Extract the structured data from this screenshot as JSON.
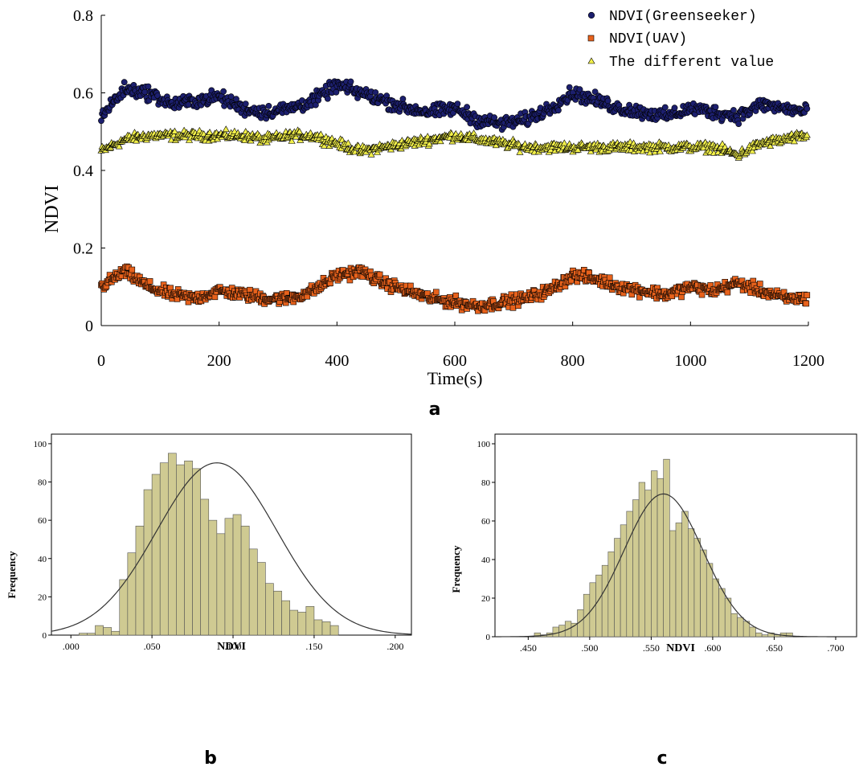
{
  "colors": {
    "greenseeker": "#1c1f6e",
    "uav": "#e8621c",
    "difference": "#f2f04a",
    "hist_bar": "#cfca92",
    "curve": "#333333",
    "axis": "#000000"
  },
  "chart_data": [
    {
      "id": "a",
      "type": "scatter",
      "panel_label": "a",
      "xlabel": "Time(s)",
      "ylabel": "NDVI",
      "xlim": [
        0,
        1200
      ],
      "ylim": [
        0,
        0.8
      ],
      "xticks": [
        0,
        200,
        400,
        600,
        800,
        1000,
        1200
      ],
      "yticks": [
        0,
        0.2,
        0.4,
        0.6,
        0.8
      ],
      "xtick_labels": [
        "0",
        "200",
        "400",
        "600",
        "800",
        "1000",
        "1200"
      ],
      "ytick_labels": [
        "0",
        "0.2",
        "0.4",
        "0.6",
        "0.8"
      ],
      "legend_position": "top-right",
      "series": [
        {
          "name": "NDVI(Greenseeker)",
          "marker": "circle",
          "x": [
            0,
            40,
            80,
            120,
            160,
            200,
            240,
            280,
            320,
            360,
            400,
            440,
            480,
            520,
            560,
            600,
            640,
            680,
            720,
            760,
            800,
            840,
            880,
            920,
            960,
            1000,
            1040,
            1080,
            1120,
            1160,
            1200
          ],
          "y": [
            0.54,
            0.61,
            0.6,
            0.57,
            0.58,
            0.59,
            0.56,
            0.55,
            0.56,
            0.58,
            0.62,
            0.6,
            0.58,
            0.56,
            0.55,
            0.56,
            0.53,
            0.52,
            0.53,
            0.56,
            0.6,
            0.58,
            0.56,
            0.55,
            0.54,
            0.56,
            0.55,
            0.54,
            0.57,
            0.56,
            0.55
          ]
        },
        {
          "name": "NDVI(UAV)",
          "marker": "square",
          "x": [
            0,
            40,
            80,
            120,
            160,
            200,
            240,
            280,
            320,
            360,
            400,
            440,
            480,
            520,
            560,
            600,
            640,
            680,
            720,
            760,
            800,
            840,
            880,
            920,
            960,
            1000,
            1040,
            1080,
            1120,
            1160,
            1200
          ],
          "y": [
            0.1,
            0.14,
            0.1,
            0.08,
            0.07,
            0.09,
            0.08,
            0.07,
            0.07,
            0.09,
            0.13,
            0.14,
            0.11,
            0.09,
            0.07,
            0.06,
            0.05,
            0.06,
            0.07,
            0.09,
            0.13,
            0.12,
            0.1,
            0.09,
            0.08,
            0.1,
            0.09,
            0.11,
            0.09,
            0.07,
            0.07
          ]
        },
        {
          "name": "The different value",
          "marker": "triangle",
          "x": [
            0,
            40,
            80,
            120,
            160,
            200,
            240,
            280,
            320,
            360,
            400,
            440,
            480,
            520,
            560,
            600,
            640,
            680,
            720,
            760,
            800,
            840,
            880,
            920,
            960,
            1000,
            1040,
            1080,
            1120,
            1160,
            1200
          ],
          "y": [
            0.45,
            0.48,
            0.49,
            0.49,
            0.49,
            0.49,
            0.49,
            0.48,
            0.49,
            0.49,
            0.47,
            0.45,
            0.46,
            0.47,
            0.48,
            0.49,
            0.48,
            0.47,
            0.46,
            0.46,
            0.46,
            0.46,
            0.46,
            0.46,
            0.46,
            0.46,
            0.46,
            0.44,
            0.47,
            0.48,
            0.49
          ]
        }
      ]
    },
    {
      "id": "b",
      "type": "bar",
      "panel_label": "b",
      "xlabel": "NDVI",
      "ylabel": "Frequency",
      "xlim": [
        -0.012,
        0.21
      ],
      "ylim": [
        0,
        105
      ],
      "xticks": [
        0,
        0.05,
        0.1,
        0.15,
        0.2
      ],
      "xtick_labels": [
        ".000",
        ".050",
        ".100",
        ".150",
        ".200"
      ],
      "yticks": [
        0,
        20,
        40,
        60,
        80,
        100
      ],
      "ytick_labels": [
        "0",
        "20",
        "40",
        "60",
        "80",
        "100"
      ],
      "bin_width": 0.005,
      "bin_start": 0.005,
      "values": [
        1,
        1,
        5,
        4,
        2,
        29,
        43,
        57,
        76,
        84,
        90,
        95,
        89,
        91,
        87,
        71,
        60,
        53,
        61,
        63,
        57,
        45,
        38,
        27,
        23,
        18,
        13,
        12,
        15,
        8,
        7,
        5
      ],
      "normal_curve": {
        "mean": 0.09,
        "sd": 0.037,
        "peak": 90
      }
    },
    {
      "id": "c",
      "type": "bar",
      "panel_label": "c",
      "xlabel": "NDVI",
      "ylabel": "Frequency",
      "xlim": [
        0.423,
        0.717
      ],
      "ylim": [
        0,
        105
      ],
      "xticks": [
        0.45,
        0.5,
        0.55,
        0.6,
        0.65,
        0.7
      ],
      "xtick_labels": [
        ".450",
        ".500",
        ".550",
        ".600",
        ".650",
        ".700"
      ],
      "yticks": [
        0,
        20,
        40,
        60,
        80,
        100
      ],
      "ytick_labels": [
        "0",
        "20",
        "40",
        "60",
        "80",
        "100"
      ],
      "bin_width": 0.005,
      "bin_start": 0.455,
      "values": [
        2,
        1,
        2,
        5,
        6,
        8,
        7,
        14,
        22,
        28,
        32,
        37,
        44,
        51,
        58,
        65,
        71,
        80,
        76,
        86,
        82,
        92,
        55,
        59,
        65,
        56,
        51,
        45,
        38,
        30,
        25,
        20,
        12,
        10,
        8,
        5,
        2,
        1,
        2,
        1,
        2,
        2
      ],
      "normal_curve": {
        "mean": 0.56,
        "sd": 0.032,
        "peak": 74
      }
    }
  ]
}
